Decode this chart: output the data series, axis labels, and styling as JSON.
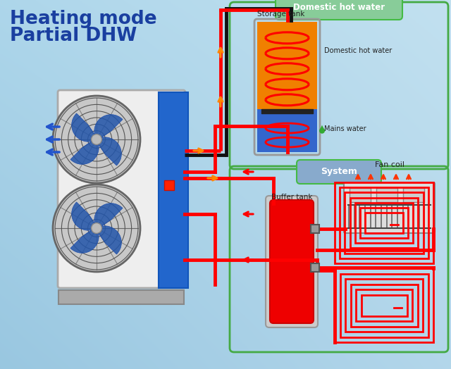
{
  "title_line1": "Heating mode",
  "title_line2": "Partial DHW",
  "title_color": "#1a3fa0",
  "pipe_red": "#ff0000",
  "pipe_black": "#111111",
  "pipe_orange": "#ff8800",
  "box_dhw_label": "Domestic hot water",
  "box_system_label": "System",
  "storage_tank_label": "Storage tank",
  "domestic_hw_label": "Domestic hot water",
  "mains_water_label": "Mains water",
  "buffer_tank_label": "Buffer tank",
  "fan_coil_label": "Fan coil",
  "bg_tl": [
    0.68,
    0.84,
    0.92
  ],
  "bg_tr": [
    0.76,
    0.88,
    0.94
  ],
  "bg_bl": [
    0.6,
    0.78,
    0.88
  ],
  "bg_br": [
    0.7,
    0.84,
    0.92
  ]
}
